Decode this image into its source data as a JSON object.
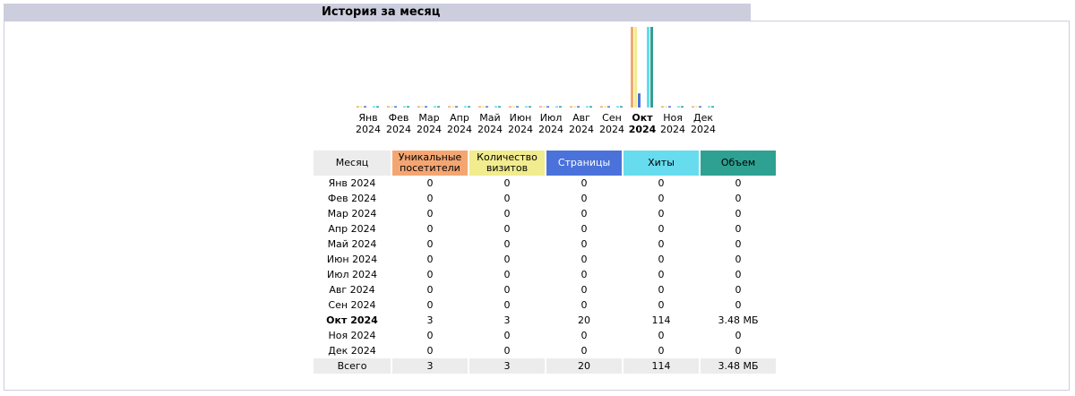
{
  "section": {
    "title": "История за месяц"
  },
  "colors": {
    "visitors": "#f4a672",
    "visits": "#f1ec8e",
    "pages": "#4a72da",
    "hits": "#66dcee",
    "bandwidth": "#2ea192"
  },
  "table": {
    "headers": {
      "month": "Месяц",
      "visitors": "Уникальные посетители",
      "visits": "Количество визитов",
      "pages": "Страницы",
      "hits": "Хиты",
      "bandwidth": "Объем"
    },
    "rows": [
      {
        "month": "Янв 2024",
        "visitors": "0",
        "visits": "0",
        "pages": "0",
        "hits": "0",
        "bandwidth": "0"
      },
      {
        "month": "Фев 2024",
        "visitors": "0",
        "visits": "0",
        "pages": "0",
        "hits": "0",
        "bandwidth": "0"
      },
      {
        "month": "Мар 2024",
        "visitors": "0",
        "visits": "0",
        "pages": "0",
        "hits": "0",
        "bandwidth": "0"
      },
      {
        "month": "Апр 2024",
        "visitors": "0",
        "visits": "0",
        "pages": "0",
        "hits": "0",
        "bandwidth": "0"
      },
      {
        "month": "Май 2024",
        "visitors": "0",
        "visits": "0",
        "pages": "0",
        "hits": "0",
        "bandwidth": "0"
      },
      {
        "month": "Июн 2024",
        "visitors": "0",
        "visits": "0",
        "pages": "0",
        "hits": "0",
        "bandwidth": "0"
      },
      {
        "month": "Июл 2024",
        "visitors": "0",
        "visits": "0",
        "pages": "0",
        "hits": "0",
        "bandwidth": "0"
      },
      {
        "month": "Авг 2024",
        "visitors": "0",
        "visits": "0",
        "pages": "0",
        "hits": "0",
        "bandwidth": "0"
      },
      {
        "month": "Сен 2024",
        "visitors": "0",
        "visits": "0",
        "pages": "0",
        "hits": "0",
        "bandwidth": "0"
      },
      {
        "month": "Окт 2024",
        "visitors": "3",
        "visits": "3",
        "pages": "20",
        "hits": "114",
        "bandwidth": "3.48 МБ"
      },
      {
        "month": "Ноя 2024",
        "visitors": "0",
        "visits": "0",
        "pages": "0",
        "hits": "0",
        "bandwidth": "0"
      },
      {
        "month": "Дек 2024",
        "visitors": "0",
        "visits": "0",
        "pages": "0",
        "hits": "0",
        "bandwidth": "0"
      }
    ],
    "total": {
      "month": "Всего",
      "visitors": "3",
      "visits": "3",
      "pages": "20",
      "hits": "114",
      "bandwidth": "3.48 МБ"
    }
  },
  "chart_data": {
    "type": "bar",
    "categories": [
      "Янв 2024",
      "Фев 2024",
      "Мар 2024",
      "Апр 2024",
      "Май 2024",
      "Июн 2024",
      "Июл 2024",
      "Авг 2024",
      "Сен 2024",
      "Окт 2024",
      "Ноя 2024",
      "Дек 2024"
    ],
    "category_lines": [
      [
        "Янв",
        "2024"
      ],
      [
        "Фев",
        "2024"
      ],
      [
        "Мар",
        "2024"
      ],
      [
        "Апр",
        "2024"
      ],
      [
        "Май",
        "2024"
      ],
      [
        "Июн",
        "2024"
      ],
      [
        "Июл",
        "2024"
      ],
      [
        "Авг",
        "2024"
      ],
      [
        "Сен",
        "2024"
      ],
      [
        "Окт",
        "2024"
      ],
      [
        "Ноя",
        "2024"
      ],
      [
        "Дек",
        "2024"
      ]
    ],
    "active_category": "Окт 2024",
    "series": [
      {
        "key": "visitors",
        "values": [
          0,
          0,
          0,
          0,
          0,
          0,
          0,
          0,
          0,
          3,
          0,
          0
        ]
      },
      {
        "key": "visits",
        "values": [
          0,
          0,
          0,
          0,
          0,
          0,
          0,
          0,
          0,
          3,
          0,
          0
        ]
      },
      {
        "key": "pages",
        "values": [
          0,
          0,
          0,
          0,
          0,
          0,
          0,
          0,
          0,
          20,
          0,
          0
        ]
      },
      {
        "key": "hits",
        "values": [
          0,
          0,
          0,
          0,
          0,
          0,
          0,
          0,
          0,
          114,
          0,
          0
        ]
      },
      {
        "key": "bandwidth",
        "values_mb": [
          0,
          0,
          0,
          0,
          0,
          0,
          0,
          0,
          0,
          3.48,
          0,
          0
        ]
      }
    ]
  }
}
